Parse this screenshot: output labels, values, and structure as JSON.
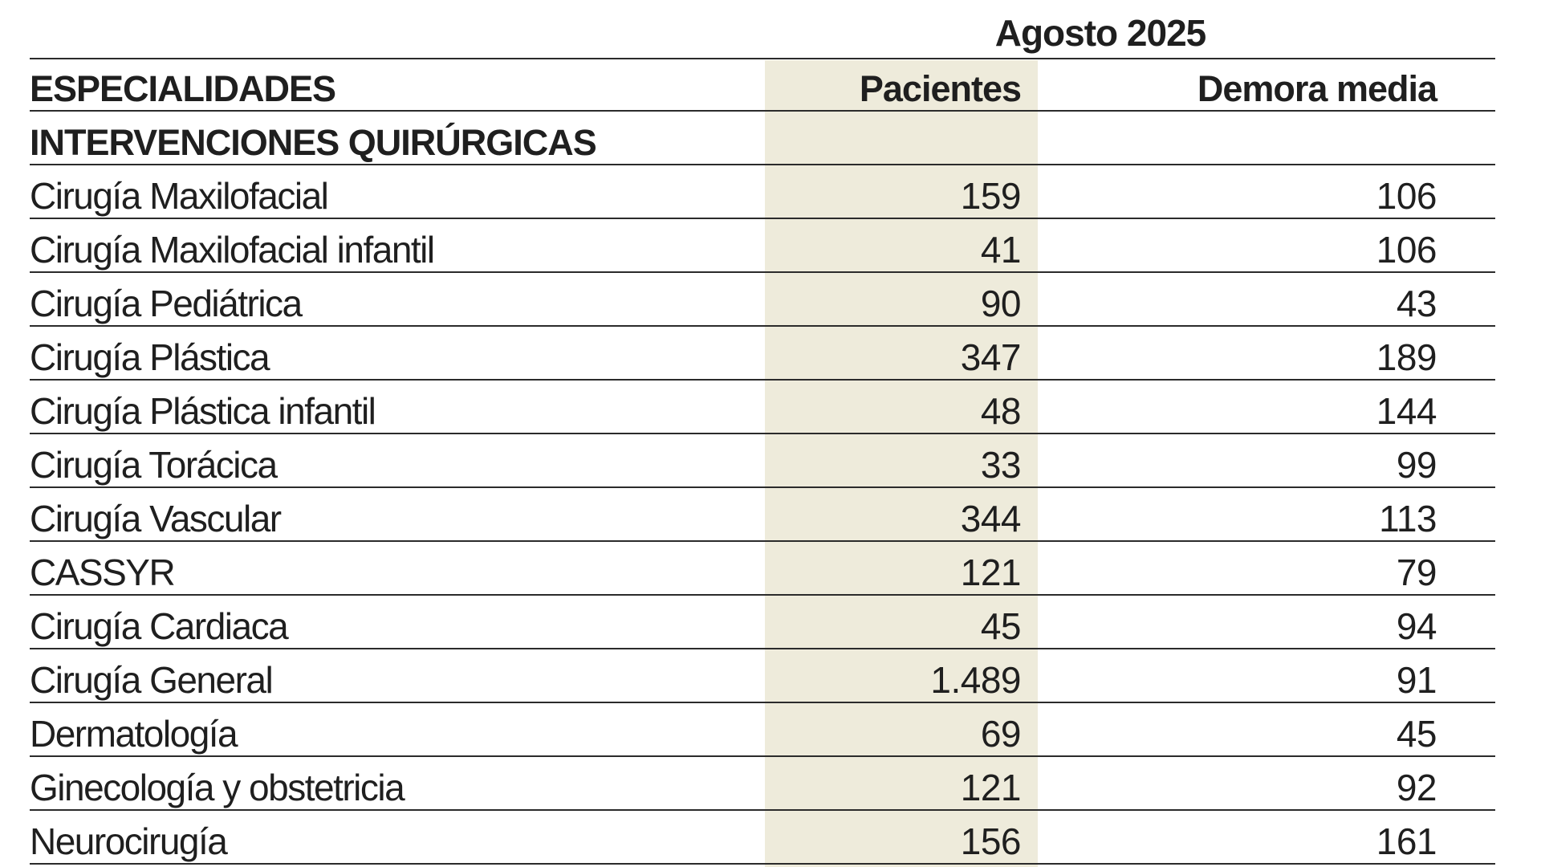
{
  "table": {
    "period_label": "Agosto 2025",
    "headers": {
      "specialties": "ESPECIALIDADES",
      "patients": "Pacientes",
      "delay": "Demora media"
    },
    "section_title": "INTERVENCIONES QUIRÚRGICAS",
    "rows": [
      {
        "name": "Cirugía Maxilofacial",
        "patients": "159",
        "delay": "106"
      },
      {
        "name": "Cirugía Maxilofacial infantil",
        "patients": "41",
        "delay": "106"
      },
      {
        "name": "Cirugía Pediátrica",
        "patients": "90",
        "delay": "43"
      },
      {
        "name": "Cirugía Plástica",
        "patients": "347",
        "delay": "189"
      },
      {
        "name": "Cirugía Plástica infantil",
        "patients": "48",
        "delay": "144"
      },
      {
        "name": "Cirugía Torácica",
        "patients": "33",
        "delay": "99"
      },
      {
        "name": "Cirugía Vascular",
        "patients": "344",
        "delay": "113"
      },
      {
        "name": "CASSYR",
        "patients": "121",
        "delay": "79"
      },
      {
        "name": "Cirugía Cardiaca",
        "patients": "45",
        "delay": "94"
      },
      {
        "name": "Cirugía General",
        "patients": "1.489",
        "delay": "91"
      },
      {
        "name": "Dermatología",
        "patients": "69",
        "delay": "45"
      },
      {
        "name": "Ginecología y obstetricia",
        "patients": "121",
        "delay": "92"
      },
      {
        "name": "Neurocirugía",
        "patients": "156",
        "delay": "161"
      }
    ],
    "colors": {
      "highlight_column": "#eeebdb",
      "rule": "#2b2b2b",
      "text": "#1f1f1f"
    }
  }
}
